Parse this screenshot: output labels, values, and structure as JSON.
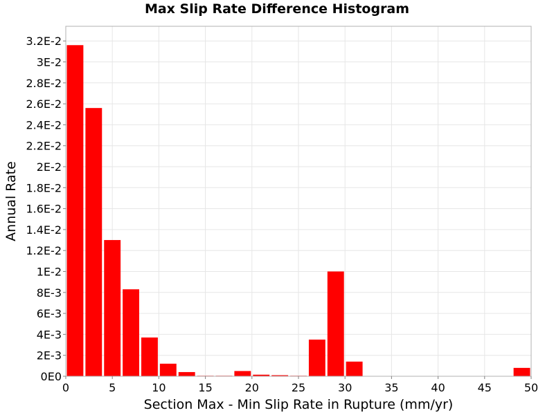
{
  "chart_data": {
    "type": "bar",
    "title": "Max Slip Rate Difference Histogram",
    "xlabel": "Section Max - Min Slip Rate in Rupture (mm/yr)",
    "ylabel": "Annual Rate",
    "xlim": [
      0,
      50
    ],
    "ylim": [
      0,
      0.0334
    ],
    "bin_width": 2,
    "bar_color": "#ff0000",
    "grid": true,
    "x_ticks": [
      0,
      5,
      10,
      15,
      20,
      25,
      30,
      35,
      40,
      45,
      50
    ],
    "x_tick_labels": [
      "0",
      "5",
      "10",
      "15",
      "20",
      "25",
      "30",
      "35",
      "40",
      "45",
      "50"
    ],
    "y_ticks": [
      0,
      0.002,
      0.004,
      0.006,
      0.008,
      0.01,
      0.012,
      0.014,
      0.016,
      0.018,
      0.02,
      0.022,
      0.024,
      0.026,
      0.028,
      0.03,
      0.032
    ],
    "y_tick_labels": [
      "0E0",
      "2E-3",
      "4E-3",
      "6E-3",
      "8E-3",
      "1E-2",
      "1.2E-2",
      "1.4E-2",
      "1.6E-2",
      "1.8E-2",
      "2E-2",
      "2.2E-2",
      "2.4E-2",
      "2.6E-2",
      "2.8E-2",
      "3E-2",
      "3.2E-2"
    ],
    "x": [
      1,
      3,
      5,
      7,
      9,
      11,
      13,
      15,
      17,
      19,
      21,
      23,
      25,
      27,
      29,
      31,
      33,
      35,
      37,
      39,
      41,
      43,
      45,
      47,
      49
    ],
    "values": [
      0.0316,
      0.0256,
      0.013,
      0.0083,
      0.0037,
      0.0012,
      0.0004,
      5e-05,
      5e-05,
      0.0005,
      0.00015,
      0.0001,
      5e-05,
      0.0035,
      0.01,
      0.0014,
      0,
      0,
      0,
      0,
      0,
      0,
      0,
      0,
      0.0008
    ]
  }
}
